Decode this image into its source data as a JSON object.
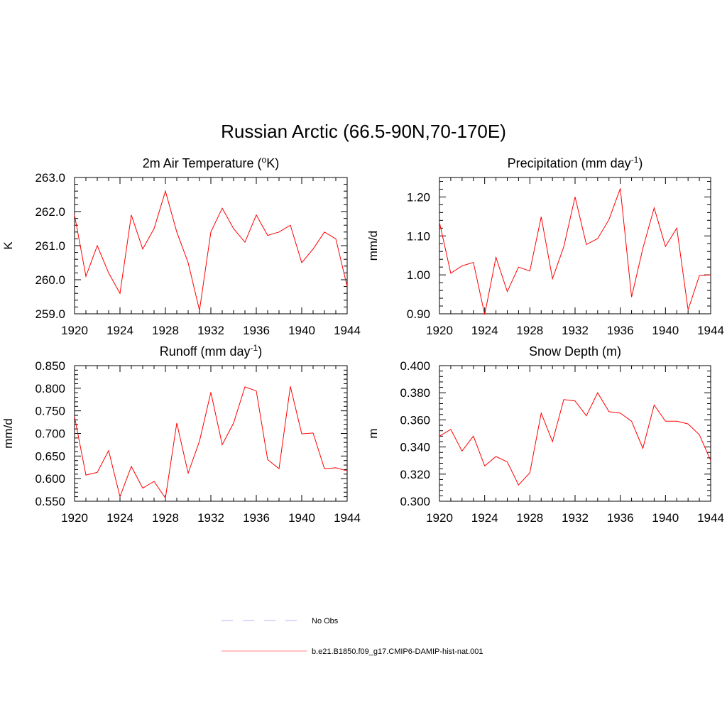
{
  "title": "Russian Arctic (66.5-90N,70-170E)",
  "chart_data": [
    {
      "type": "line",
      "title_parts": [
        "2m Air Temperature (",
        "o",
        "K)"
      ],
      "ylabel": "K",
      "xlim": [
        1920,
        1944
      ],
      "ylim": [
        259.0,
        263.0
      ],
      "xticks": [
        1920,
        1924,
        1928,
        1932,
        1936,
        1940,
        1944
      ],
      "xtick_labels": [
        "1920",
        "1924",
        "1928",
        "1932",
        "1936",
        "1940",
        "1944"
      ],
      "yticks": [
        259.0,
        260.0,
        261.0,
        262.0,
        263.0
      ],
      "ytick_labels": [
        "259.0",
        "260.0",
        "261.0",
        "262.0",
        "263.0"
      ],
      "series": [
        {
          "color": "#ff0000",
          "x": [
            1920,
            1921,
            1922,
            1923,
            1924,
            1925,
            1926,
            1927,
            1928,
            1929,
            1930,
            1931,
            1932,
            1933,
            1934,
            1935,
            1936,
            1937,
            1938,
            1939,
            1940,
            1941,
            1942,
            1943,
            1944
          ],
          "y": [
            261.9,
            260.1,
            261.0,
            260.2,
            259.6,
            261.9,
            260.9,
            261.5,
            262.6,
            261.4,
            260.5,
            259.1,
            261.4,
            262.1,
            261.5,
            261.1,
            261.9,
            261.3,
            261.4,
            261.6,
            260.5,
            260.9,
            261.4,
            261.2,
            259.8
          ]
        }
      ]
    },
    {
      "type": "line",
      "title_parts": [
        "Precipitation (mm day",
        "-1",
        ")"
      ],
      "ylabel": "mm/d",
      "xlim": [
        1920,
        1944
      ],
      "ylim": [
        0.9,
        1.25
      ],
      "xticks": [
        1920,
        1924,
        1928,
        1932,
        1936,
        1940,
        1944
      ],
      "xtick_labels": [
        "1920",
        "1924",
        "1928",
        "1932",
        "1936",
        "1940",
        "1944"
      ],
      "yticks": [
        0.9,
        1.0,
        1.1,
        1.2
      ],
      "ytick_labels": [
        "0.90",
        "1.00",
        "1.10",
        "1.20"
      ],
      "series": [
        {
          "color": "#ff0000",
          "x": [
            1920,
            1921,
            1922,
            1923,
            1924,
            1925,
            1926,
            1927,
            1928,
            1929,
            1930,
            1931,
            1932,
            1933,
            1934,
            1935,
            1936,
            1937,
            1938,
            1939,
            1940,
            1941,
            1942,
            1943,
            1944
          ],
          "y": [
            1.135,
            1.004,
            1.023,
            1.032,
            0.898,
            1.045,
            0.957,
            1.02,
            1.01,
            1.149,
            0.99,
            1.072,
            1.2,
            1.078,
            1.093,
            1.142,
            1.222,
            0.943,
            1.068,
            1.172,
            1.073,
            1.12,
            0.91,
            0.998,
            1.0
          ]
        }
      ]
    },
    {
      "type": "line",
      "title_parts": [
        "Runoff (mm day",
        "-1",
        ")"
      ],
      "ylabel": "mm/d",
      "xlim": [
        1920,
        1944
      ],
      "ylim": [
        0.55,
        0.85
      ],
      "xticks": [
        1920,
        1924,
        1928,
        1932,
        1936,
        1940,
        1944
      ],
      "xtick_labels": [
        "1920",
        "1924",
        "1928",
        "1932",
        "1936",
        "1940",
        "1944"
      ],
      "yticks": [
        0.55,
        0.6,
        0.65,
        0.7,
        0.75,
        0.8,
        0.85
      ],
      "ytick_labels": [
        "0.550",
        "0.600",
        "0.650",
        "0.700",
        "0.750",
        "0.800",
        "0.850"
      ],
      "series": [
        {
          "color": "#ff0000",
          "x": [
            1920,
            1921,
            1922,
            1923,
            1924,
            1925,
            1926,
            1927,
            1928,
            1929,
            1930,
            1931,
            1932,
            1933,
            1934,
            1935,
            1936,
            1937,
            1938,
            1939,
            1940,
            1941,
            1942,
            1943,
            1944
          ],
          "y": [
            0.737,
            0.608,
            0.614,
            0.662,
            0.56,
            0.627,
            0.579,
            0.594,
            0.557,
            0.723,
            0.612,
            0.683,
            0.791,
            0.675,
            0.723,
            0.803,
            0.794,
            0.642,
            0.622,
            0.804,
            0.699,
            0.701,
            0.622,
            0.624,
            0.617
          ]
        }
      ]
    },
    {
      "type": "line",
      "title_parts": [
        "Snow Depth (m)",
        "",
        ""
      ],
      "ylabel": "m",
      "xlim": [
        1920,
        1944
      ],
      "ylim": [
        0.3,
        0.4
      ],
      "xticks": [
        1920,
        1924,
        1928,
        1932,
        1936,
        1940,
        1944
      ],
      "xtick_labels": [
        "1920",
        "1924",
        "1928",
        "1932",
        "1936",
        "1940",
        "1944"
      ],
      "yticks": [
        0.3,
        0.32,
        0.34,
        0.36,
        0.38,
        0.4
      ],
      "ytick_labels": [
        "0.300",
        "0.320",
        "0.340",
        "0.360",
        "0.380",
        "0.400"
      ],
      "series": [
        {
          "color": "#ff0000",
          "x": [
            1920,
            1921,
            1922,
            1923,
            1924,
            1925,
            1926,
            1927,
            1928,
            1929,
            1930,
            1931,
            1932,
            1933,
            1934,
            1935,
            1936,
            1937,
            1938,
            1939,
            1940,
            1941,
            1942,
            1943,
            1944
          ],
          "y": [
            0.348,
            0.353,
            0.337,
            0.348,
            0.326,
            0.333,
            0.329,
            0.312,
            0.321,
            0.365,
            0.344,
            0.375,
            0.374,
            0.363,
            0.38,
            0.366,
            0.365,
            0.359,
            0.339,
            0.371,
            0.359,
            0.359,
            0.357,
            0.349,
            0.33
          ]
        }
      ]
    }
  ],
  "legend": [
    {
      "label": "No Obs",
      "color": "#b3b3ff",
      "dash": "16,14"
    },
    {
      "label": "b.e21.B1850.f09_g17.CMIP6-DAMIP-hist-nat.001",
      "color": "#ff8080",
      "dash": ""
    }
  ]
}
